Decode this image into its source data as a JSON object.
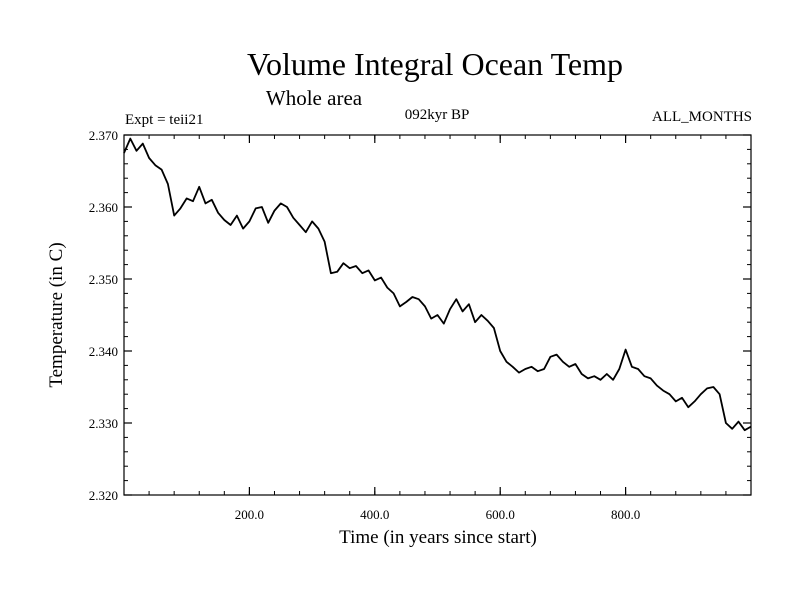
{
  "chart_data": {
    "type": "line",
    "title": "Volume Integral Ocean Temp",
    "subtitle": "Whole area",
    "left_label": "Expt = teii21",
    "center_label": "092kyr BP",
    "right_label": "ALL_MONTHS",
    "xlabel": "Time (in years since start)",
    "ylabel": "Temperature (in C)",
    "xlim": [
      0,
      1000
    ],
    "ylim": [
      2.32,
      2.37
    ],
    "xticks": [
      200,
      400,
      600,
      800
    ],
    "xtick_labels": [
      "200.0",
      "400.0",
      "600.0",
      "800.0"
    ],
    "yticks": [
      2.32,
      2.33,
      2.34,
      2.35,
      2.36,
      2.37
    ],
    "ytick_labels": [
      "2.320",
      "2.330",
      "2.340",
      "2.350",
      "2.360",
      "2.370"
    ],
    "grid": false,
    "line_color": "#000000",
    "series": [
      {
        "x": [
          0,
          10,
          20,
          30,
          40,
          50,
          60,
          70,
          80,
          90,
          100,
          110,
          120,
          130,
          140,
          150,
          160,
          170,
          180,
          190,
          200,
          210,
          220,
          230,
          240,
          250,
          260,
          270,
          280,
          290,
          300,
          310,
          320,
          330,
          340,
          350,
          360,
          370,
          380,
          390,
          400,
          410,
          420,
          430,
          440,
          450,
          460,
          470,
          480,
          490,
          500,
          510,
          520,
          530,
          540,
          550,
          560,
          570,
          580,
          590,
          600,
          610,
          620,
          630,
          640,
          650,
          660,
          670,
          680,
          690,
          700,
          710,
          720,
          730,
          740,
          750,
          760,
          770,
          780,
          790,
          800,
          810,
          820,
          830,
          840,
          850,
          860,
          870,
          880,
          890,
          900,
          910,
          920,
          930,
          940,
          950,
          960,
          970,
          980,
          990,
          1000
        ],
        "values": [
          2.3675,
          2.3695,
          2.3678,
          2.3688,
          2.3668,
          2.3658,
          2.3652,
          2.3632,
          2.3588,
          2.3598,
          2.3612,
          2.3608,
          2.3628,
          2.3605,
          2.361,
          2.3592,
          2.3582,
          2.3575,
          2.3588,
          2.357,
          2.358,
          2.3598,
          2.36,
          2.3578,
          2.3595,
          2.3605,
          2.36,
          2.3585,
          2.3575,
          2.3565,
          2.358,
          2.357,
          2.3552,
          2.3508,
          2.351,
          2.3522,
          2.3515,
          2.3518,
          2.3508,
          2.3512,
          2.3498,
          2.3502,
          2.3488,
          2.348,
          2.3462,
          2.3468,
          2.3475,
          2.3472,
          2.3462,
          2.3445,
          2.345,
          2.3438,
          2.3458,
          2.3472,
          2.3455,
          2.3465,
          2.344,
          2.345,
          2.3442,
          2.3432,
          2.34,
          2.3385,
          2.3378,
          2.337,
          2.3375,
          2.3378,
          2.3372,
          2.3375,
          2.3392,
          2.3395,
          2.3385,
          2.3378,
          2.3382,
          2.3368,
          2.3362,
          2.3365,
          2.336,
          2.3368,
          2.336,
          2.3375,
          2.3402,
          2.3378,
          2.3375,
          2.3365,
          2.3362,
          2.3352,
          2.3345,
          2.334,
          2.333,
          2.3335,
          2.3322,
          2.333,
          2.334,
          2.3348,
          2.335,
          2.334,
          2.33,
          2.3292,
          2.3302,
          2.329,
          2.3295
        ]
      }
    ]
  }
}
